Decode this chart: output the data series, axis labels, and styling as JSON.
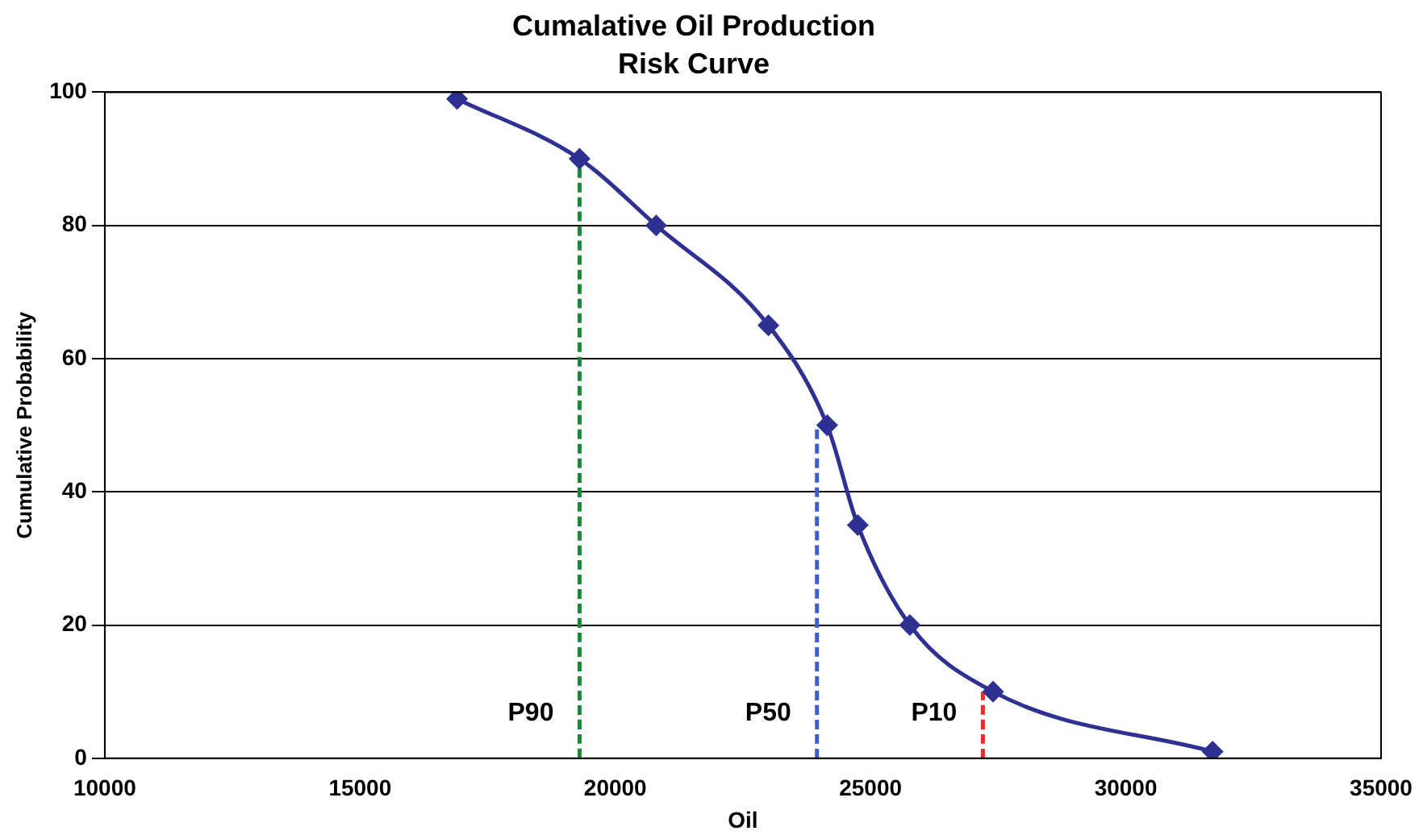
{
  "chart_data": {
    "type": "line",
    "title": "Cumalative Oil Production",
    "subtitle": "Risk Curve",
    "xlabel": "Oil",
    "ylabel": "Cumulative Probability",
    "xlim": [
      10000,
      35000
    ],
    "xticks": [
      10000,
      15000,
      20000,
      25000,
      30000,
      35000
    ],
    "ylim": [
      0,
      100
    ],
    "yticks": [
      0,
      20,
      40,
      60,
      80,
      100
    ],
    "grid": "y",
    "legend": false,
    "marker": "diamond",
    "line_style": "solid",
    "series": [
      {
        "color": "#2e3192",
        "x": [
          16900,
          19300,
          20800,
          23000,
          24150,
          24750,
          25770,
          27400,
          31700
        ],
        "values": [
          99,
          90,
          80,
          65,
          50,
          35,
          20,
          10,
          1
        ]
      },
      {
        "name": "P90",
        "color": "#1a8a3a",
        "x": [
          19300,
          19300
        ],
        "values": [
          0,
          90
        ],
        "marker": "none",
        "line_style": "dashed"
      },
      {
        "name": "P50",
        "color": "#3a5fcd",
        "x": [
          23950,
          23950
        ],
        "values": [
          0,
          50
        ],
        "marker": "none",
        "line_style": "dashed"
      },
      {
        "name": "P10",
        "color": "#e0302a",
        "x": [
          27200,
          27200
        ],
        "values": [
          0,
          10
        ],
        "marker": "none",
        "line_style": "dashed"
      }
    ]
  }
}
